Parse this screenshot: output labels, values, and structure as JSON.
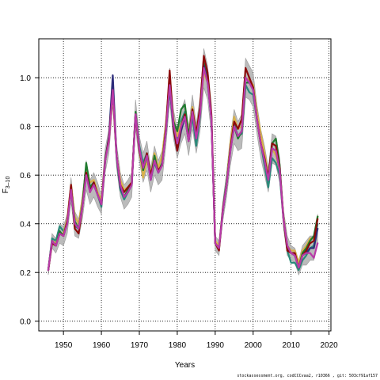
{
  "chart_data": {
    "type": "line",
    "xlabel": "Years",
    "ylabel_main": "F",
    "ylabel_sub": "3–10",
    "xlim": [
      1943.5,
      2020.5
    ],
    "ylim": [
      -0.04,
      1.16
    ],
    "x_ticks": [
      1950,
      1960,
      1970,
      1980,
      1990,
      2000,
      2010,
      2020
    ],
    "y_ticks": [
      0.0,
      0.2,
      0.4,
      0.6,
      0.8,
      1.0
    ],
    "y_tick_labels": [
      "0.0",
      "0.2",
      "0.4",
      "0.6",
      "0.8",
      "1.0"
    ],
    "grid": true,
    "grid_style": "dotted",
    "band_color": "#b0b0b0",
    "x": [
      1946,
      1947,
      1948,
      1949,
      1950,
      1951,
      1952,
      1953,
      1954,
      1955,
      1956,
      1957,
      1958,
      1959,
      1960,
      1961,
      1962,
      1963,
      1964,
      1965,
      1966,
      1967,
      1968,
      1969,
      1970,
      1971,
      1972,
      1973,
      1974,
      1975,
      1976,
      1977,
      1978,
      1979,
      1980,
      1981,
      1982,
      1983,
      1984,
      1985,
      1986,
      1987,
      1988,
      1989,
      1990,
      1991,
      1992,
      1993,
      1994,
      1995,
      1996,
      1997,
      1998,
      1999,
      2000,
      2001,
      2002,
      2003,
      2004,
      2005,
      2006,
      2007,
      2008,
      2009,
      2010,
      2011,
      2012,
      2013,
      2014,
      2015,
      2016,
      2017
    ],
    "base": [
      0.21,
      0.33,
      0.31,
      0.36,
      0.35,
      0.4,
      0.54,
      0.4,
      0.38,
      0.47,
      0.6,
      0.53,
      0.56,
      0.52,
      0.48,
      0.66,
      0.74,
      0.95,
      0.68,
      0.56,
      0.51,
      0.53,
      0.56,
      0.85,
      0.71,
      0.63,
      0.68,
      0.58,
      0.66,
      0.61,
      0.64,
      0.78,
      0.97,
      0.81,
      0.73,
      0.8,
      0.84,
      0.74,
      0.86,
      0.75,
      0.85,
      1.04,
      0.98,
      0.83,
      0.32,
      0.3,
      0.45,
      0.56,
      0.7,
      0.8,
      0.76,
      0.78,
      1.0,
      0.98,
      0.95,
      0.83,
      0.73,
      0.66,
      0.58,
      0.71,
      0.7,
      0.62,
      0.42,
      0.31,
      0.28,
      0.27,
      0.22,
      0.27,
      0.28,
      0.3,
      0.3,
      0.38
    ],
    "band_half": [
      0.02,
      0.03,
      0.03,
      0.04,
      0.04,
      0.04,
      0.05,
      0.05,
      0.04,
      0.05,
      0.06,
      0.05,
      0.05,
      0.05,
      0.04,
      0.05,
      0.05,
      0.06,
      0.05,
      0.05,
      0.05,
      0.05,
      0.05,
      0.06,
      0.05,
      0.06,
      0.06,
      0.05,
      0.06,
      0.05,
      0.06,
      0.06,
      0.07,
      0.06,
      0.06,
      0.07,
      0.07,
      0.06,
      0.07,
      0.06,
      0.07,
      0.08,
      0.07,
      0.06,
      0.03,
      0.03,
      0.04,
      0.05,
      0.06,
      0.07,
      0.06,
      0.07,
      0.08,
      0.07,
      0.07,
      0.06,
      0.06,
      0.06,
      0.05,
      0.06,
      0.06,
      0.05,
      0.04,
      0.04,
      0.03,
      0.03,
      0.03,
      0.04,
      0.05,
      0.05,
      0.05,
      0.06
    ],
    "series": [
      {
        "color": "#2a8a7a",
        "offsets": [
          0.0,
          0.01,
          0.02,
          0.03,
          0.02,
          0.01,
          0.0,
          -0.01,
          0.0,
          0.01,
          0.02,
          0.02,
          0.01,
          0.0,
          -0.01,
          0.0,
          0.01,
          0.0,
          -0.01,
          -0.02,
          -0.01,
          0.0,
          0.01,
          0.0,
          0.01,
          0.02,
          0.01,
          0.0,
          -0.01,
          0.0,
          0.01,
          0.0,
          -0.02,
          0.0,
          0.01,
          0.02,
          0.02,
          0.0,
          -0.02,
          -0.03,
          -0.01,
          0.0,
          0.01,
          0.01,
          0.0,
          0.0,
          0.01,
          0.02,
          0.02,
          0.01,
          0.0,
          -0.01,
          -0.03,
          -0.04,
          -0.02,
          0.0,
          0.0,
          -0.02,
          -0.03,
          -0.04,
          -0.05,
          -0.02,
          0.0,
          -0.02,
          -0.04,
          -0.03,
          -0.01,
          -0.02,
          -0.01,
          0.0,
          0.01,
          0.02
        ]
      },
      {
        "color": "#d9b24a",
        "offsets": [
          0.0,
          0.0,
          0.01,
          0.0,
          0.01,
          0.02,
          0.02,
          0.03,
          0.02,
          0.03,
          0.03,
          0.04,
          0.02,
          0.01,
          0.02,
          0.01,
          0.0,
          -0.02,
          0.0,
          0.02,
          0.03,
          0.02,
          0.01,
          -0.01,
          0.0,
          -0.04,
          -0.02,
          0.02,
          0.03,
          0.02,
          0.04,
          0.03,
          0.0,
          0.02,
          0.03,
          0.01,
          0.0,
          0.03,
          0.02,
          0.03,
          0.0,
          -0.02,
          0.0,
          0.01,
          0.01,
          0.01,
          0.0,
          0.01,
          0.03,
          0.04,
          0.03,
          0.02,
          0.0,
          0.01,
          0.02,
          0.03,
          0.04,
          0.03,
          0.02,
          0.0,
          -0.02,
          0.0,
          0.01,
          0.0,
          0.01,
          0.02,
          0.02,
          0.02,
          0.03,
          0.04,
          0.04,
          0.05
        ]
      },
      {
        "color": "#1f7a2e",
        "offsets": [
          0.0,
          0.0,
          0.0,
          0.01,
          0.0,
          0.0,
          0.01,
          0.01,
          0.0,
          0.01,
          0.05,
          0.02,
          0.01,
          0.0,
          0.0,
          0.01,
          0.01,
          0.0,
          0.0,
          -0.01,
          0.0,
          0.01,
          0.0,
          0.01,
          0.0,
          -0.01,
          0.0,
          0.01,
          0.02,
          0.0,
          0.01,
          0.01,
          0.0,
          0.01,
          0.05,
          0.07,
          0.05,
          0.02,
          0.01,
          0.0,
          0.01,
          0.02,
          0.01,
          0.0,
          0.0,
          0.0,
          0.0,
          0.0,
          0.01,
          0.0,
          -0.01,
          0.0,
          -0.02,
          0.0,
          0.01,
          0.0,
          0.0,
          0.0,
          0.01,
          0.02,
          0.05,
          0.02,
          0.0,
          -0.01,
          0.0,
          0.0,
          0.0,
          0.01,
          0.02,
          0.03,
          0.05,
          0.05
        ]
      },
      {
        "color": "#2c2c7a",
        "offsets": [
          0.0,
          0.0,
          0.0,
          0.0,
          0.0,
          0.01,
          0.0,
          0.0,
          0.0,
          0.0,
          0.0,
          0.01,
          0.0,
          0.0,
          0.0,
          0.0,
          0.02,
          0.06,
          0.0,
          -0.01,
          0.0,
          0.0,
          0.0,
          0.0,
          0.0,
          0.0,
          0.0,
          0.0,
          0.0,
          0.0,
          0.0,
          0.0,
          0.0,
          -0.02,
          -0.03,
          -0.02,
          0.0,
          0.0,
          0.0,
          0.0,
          0.0,
          0.01,
          0.0,
          0.0,
          0.0,
          0.0,
          0.0,
          0.0,
          0.0,
          0.0,
          0.0,
          0.0,
          0.0,
          0.0,
          0.0,
          0.0,
          0.0,
          0.0,
          0.0,
          0.0,
          0.0,
          0.0,
          0.0,
          0.0,
          0.0,
          0.0,
          0.0,
          0.0,
          0.0,
          0.0,
          0.0,
          0.0
        ]
      },
      {
        "color": "#8b0a0a",
        "offsets": [
          0.0,
          -0.01,
          0.0,
          0.0,
          0.0,
          0.01,
          0.02,
          -0.02,
          -0.02,
          0.0,
          0.01,
          0.0,
          0.01,
          0.0,
          0.0,
          0.0,
          0.01,
          0.0,
          0.0,
          0.0,
          0.02,
          0.02,
          0.01,
          0.0,
          -0.01,
          0.0,
          0.01,
          0.02,
          0.0,
          0.01,
          0.0,
          0.01,
          0.06,
          -0.01,
          -0.03,
          0.0,
          0.01,
          0.0,
          0.01,
          0.02,
          0.03,
          0.05,
          0.04,
          0.02,
          0.0,
          -0.01,
          0.01,
          0.0,
          0.01,
          0.02,
          0.03,
          0.05,
          0.04,
          0.02,
          0.01,
          0.0,
          0.0,
          0.01,
          0.01,
          0.02,
          0.02,
          0.01,
          0.0,
          -0.02,
          0.0,
          0.01,
          0.0,
          0.0,
          0.01,
          0.02,
          0.03,
          0.04
        ]
      },
      {
        "color": "#b83aa8",
        "offsets": [
          0.0,
          0.0,
          0.0,
          0.0,
          0.0,
          0.0,
          0.0,
          0.0,
          0.0,
          0.0,
          0.0,
          0.0,
          0.0,
          0.0,
          0.0,
          0.0,
          0.0,
          0.0,
          0.0,
          0.0,
          0.0,
          0.0,
          0.0,
          0.0,
          0.0,
          0.0,
          0.0,
          0.0,
          0.0,
          0.0,
          0.0,
          0.0,
          0.0,
          0.0,
          0.0,
          0.0,
          0.0,
          0.0,
          0.0,
          0.0,
          0.0,
          0.0,
          0.0,
          0.0,
          0.0,
          0.0,
          0.0,
          0.0,
          0.0,
          0.0,
          0.0,
          0.0,
          0.0,
          0.0,
          0.0,
          0.0,
          0.0,
          0.0,
          0.0,
          0.0,
          0.0,
          0.0,
          0.0,
          0.0,
          0.0,
          0.0,
          0.0,
          0.0,
          0.0,
          -0.02,
          -0.04,
          -0.06
        ]
      }
    ]
  },
  "footer_text": "stockassessment.org, codCCCvaa2, r10366 , git: 503cf91af157"
}
